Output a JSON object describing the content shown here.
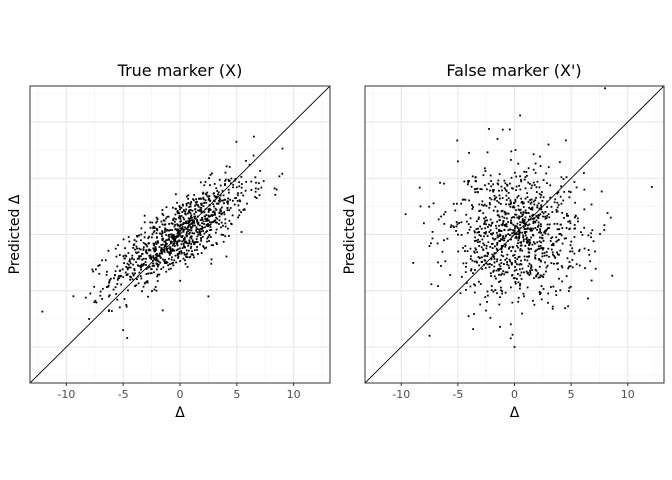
{
  "chart_data": [
    {
      "type": "scatter",
      "title": "True marker (X)",
      "xlabel": "Δ",
      "ylabel": "Predicted Δ",
      "xlim": [
        -13.2,
        13.2
      ],
      "ylim": [
        -13.2,
        13.2
      ],
      "x_ticks": [
        -10,
        -5,
        0,
        5,
        10
      ],
      "x_tick_labels": [
        "-10",
        "-5",
        "0",
        "5",
        "10"
      ],
      "grid": true,
      "reference_line": "y = x",
      "point_count": 1000,
      "x_mean": 0.0,
      "x_sd": 3.0,
      "y_mean": 0.0,
      "y_sd": 2.4,
      "correlation": 0.78,
      "sample_points": [
        [
          6.5,
          8.7
        ],
        [
          -5.0,
          -8.5
        ],
        [
          8.5,
          4.0
        ],
        [
          7.0,
          3.5
        ],
        [
          -8.0,
          -7.5
        ],
        [
          -6.0,
          -6.8
        ],
        [
          2.5,
          -5.5
        ],
        [
          4.0,
          5.5
        ]
      ]
    },
    {
      "type": "scatter",
      "title": "False marker (X')",
      "xlabel": "Δ",
      "ylabel": "Predicted Δ",
      "xlim": [
        -13.2,
        13.2
      ],
      "ylim": [
        -13.2,
        13.2
      ],
      "x_ticks": [
        -10,
        -5,
        0,
        5,
        10
      ],
      "x_tick_labels": [
        "-10",
        "-5",
        "0",
        "5",
        "10"
      ],
      "grid": true,
      "reference_line": "y = x",
      "point_count": 1000,
      "x_mean": 0.0,
      "x_sd": 3.0,
      "y_mean": 0.0,
      "y_sd": 3.0,
      "correlation": 0.0,
      "sample_points": [
        [
          8.0,
          13.0
        ],
        [
          -7.5,
          -9.0
        ],
        [
          0.0,
          -10.0
        ],
        [
          -8.0,
          1.0
        ],
        [
          8.5,
          1.5
        ],
        [
          -5.0,
          6.5
        ],
        [
          -1.5,
          8.5
        ],
        [
          3.0,
          8.0
        ]
      ]
    }
  ],
  "colors": {
    "points": "#000000",
    "grid": "#ebebeb",
    "border": "#333333",
    "tick_text": "#4d4d4d"
  }
}
